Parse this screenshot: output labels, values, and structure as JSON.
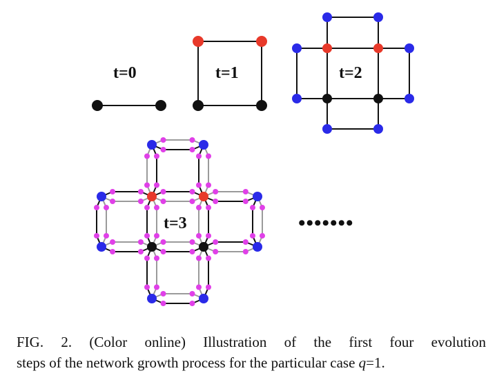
{
  "figure": {
    "steps": [
      {
        "label": "t=0"
      },
      {
        "label": "t=1"
      },
      {
        "label": "t=2"
      },
      {
        "label": "t=3"
      }
    ],
    "continuation": "•••••••",
    "node_colors": {
      "generation_0": "#111111",
      "generation_1": "#e8392a",
      "generation_2": "#2a2ae8",
      "generation_3": "#e040e8"
    },
    "edge_colors": {
      "primary": "#111111",
      "secondary": "#9a9a9a"
    }
  },
  "caption": {
    "line1": "FIG. 2. (Color online) Illustration of the first four evolution",
    "line2_prefix": "steps of the network growth process for the particular case ",
    "line2_var": "q",
    "line2_suffix": "=1."
  }
}
